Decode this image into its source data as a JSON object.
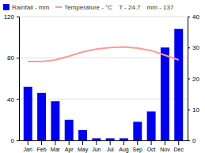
{
  "chart_data": {
    "type": "bar",
    "categories": [
      "Jan",
      "Feb",
      "Mar",
      "Apr",
      "May",
      "Jun",
      "Jul",
      "Aug",
      "Sep",
      "Oct",
      "Nov",
      "Dec"
    ],
    "series": [
      {
        "name": "Rainfall - mm",
        "type": "bar",
        "color": "#0000EE",
        "values": [
          52,
          46,
          38,
          20,
          10,
          2,
          2,
          2,
          18,
          28,
          90,
          108
        ]
      },
      {
        "name": "Temperature - °C",
        "type": "line",
        "color": "#FF9999",
        "axis": "y2",
        "values": [
          25.5,
          25.5,
          26.0,
          27.2,
          28.6,
          29.5,
          30.0,
          30.2,
          29.8,
          29.0,
          27.5,
          26.0
        ]
      }
    ],
    "ylim": [
      0,
      120
    ],
    "yticks": [
      0,
      40,
      80,
      120
    ],
    "y2lim": [
      0,
      40
    ],
    "y2ticks": [
      0,
      10,
      20,
      30,
      40
    ],
    "grid": true,
    "legend": "top",
    "annotations": [
      "T - 24.7",
      "mm - 137"
    ]
  }
}
